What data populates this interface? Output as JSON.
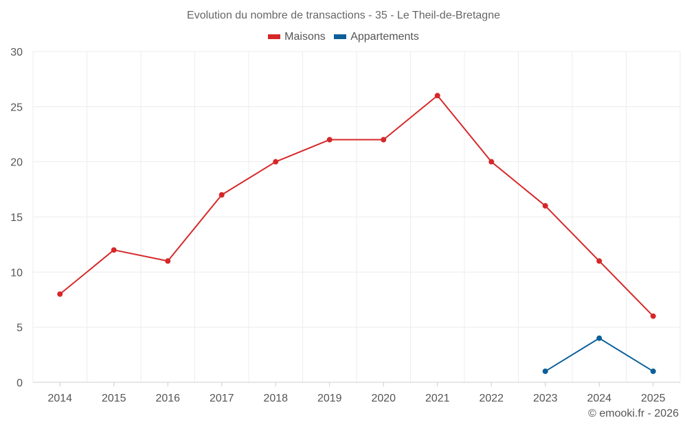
{
  "chart_data": {
    "type": "line",
    "title": "Evolution du nombre de transactions - 35 - Le Theil-de-Bretagne",
    "xlabel": "",
    "ylabel": "",
    "categories": [
      "2014",
      "2015",
      "2016",
      "2017",
      "2018",
      "2019",
      "2020",
      "2021",
      "2022",
      "2023",
      "2024",
      "2025"
    ],
    "ylim": [
      0,
      30
    ],
    "yticks": [
      "0",
      "5",
      "10",
      "15",
      "20",
      "25",
      "30"
    ],
    "grid": true,
    "legend_position": "top-center",
    "series": [
      {
        "name": "Maisons",
        "color": "#d62728",
        "values": [
          8,
          12,
          11,
          17,
          20,
          22,
          22,
          26,
          20,
          16,
          11,
          6
        ]
      },
      {
        "name": "Appartements",
        "color": "#0b5f99",
        "values": [
          null,
          null,
          null,
          null,
          null,
          null,
          null,
          null,
          null,
          1,
          4,
          1
        ]
      }
    ]
  },
  "credit": "© emooki.fr - 2026"
}
